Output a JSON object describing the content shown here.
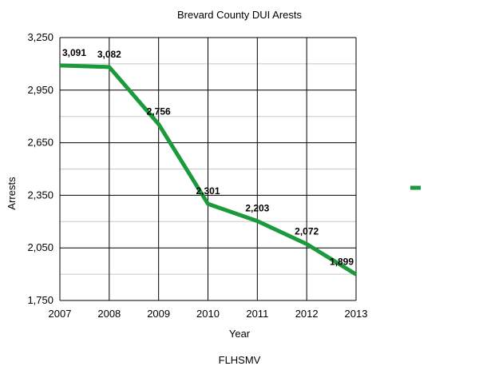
{
  "chart_data": {
    "type": "line",
    "title": "Brevard County DUI Arests",
    "xlabel": "Year",
    "ylabel": "Arrests",
    "categories": [
      "2007",
      "2008",
      "2009",
      "2010",
      "2011",
      "2012",
      "2013"
    ],
    "series": [
      {
        "values": [
          3091,
          3082,
          2756,
          2301,
          2203,
          2072,
          1899
        ],
        "data_labels": [
          "3,091",
          "3,082",
          "2,756",
          "2,301",
          "2,203",
          "2,072",
          "1,899"
        ],
        "color": "#1a9a3a"
      }
    ],
    "ylim": [
      1750,
      3250
    ],
    "y_ticks": [
      1750,
      2050,
      2350,
      2650,
      2950,
      3250
    ],
    "y_tick_labels": [
      "1,750",
      "2,050",
      "2,350",
      "2,650",
      "2,950",
      "3,250"
    ],
    "grid": true,
    "legend": "right",
    "source": "FLHSMV"
  }
}
